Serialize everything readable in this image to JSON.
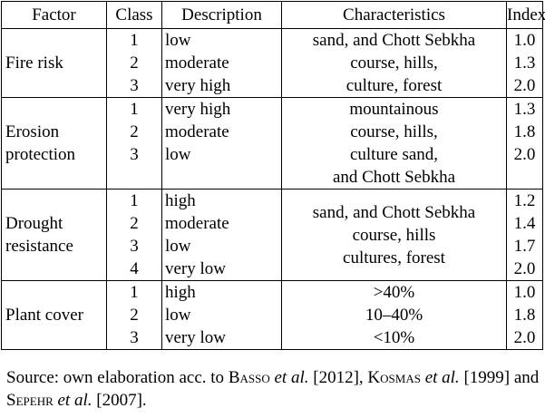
{
  "table": {
    "headers": [
      "Factor",
      "Class",
      "Description",
      "Characteristics",
      "Index"
    ],
    "groups": [
      {
        "factor": [
          "Fire risk"
        ],
        "classes": [
          "1",
          "2",
          "3"
        ],
        "descriptions": [
          "low",
          "moderate",
          "very high"
        ],
        "characteristics": [
          "sand, and Chott Sebkha",
          "course, hills,",
          "culture, forest"
        ],
        "indices": [
          "1.0",
          "1.3",
          "2.0"
        ]
      },
      {
        "factor": [
          "Erosion",
          "protection"
        ],
        "classes": [
          "1",
          "2",
          "3"
        ],
        "descriptions": [
          "very high",
          "moderate",
          "low"
        ],
        "characteristics": [
          "mountainous",
          "course, hills,",
          "culture sand,",
          "and Chott Sebkha"
        ],
        "indices": [
          "1.3",
          "1.8",
          "2.0"
        ]
      },
      {
        "factor": [
          "Drought",
          "resistance"
        ],
        "classes": [
          "1",
          "2",
          "3",
          "4"
        ],
        "descriptions": [
          "high",
          "moderate",
          "low",
          "very low"
        ],
        "characteristics": [
          "sand, and Chott Sebkha",
          "course, hills",
          "cultures, forest"
        ],
        "indices": [
          "1.2",
          "1.4",
          "1.7",
          "2.0"
        ]
      },
      {
        "factor": [
          "Plant cover"
        ],
        "classes": [
          "1",
          "2",
          "3"
        ],
        "descriptions": [
          "high",
          "low",
          "very low"
        ],
        "characteristics": [
          ">40%",
          "10–40%",
          "<10%"
        ],
        "indices": [
          "1.0",
          "1.8",
          "2.0"
        ]
      }
    ]
  },
  "source": {
    "prefix": "Source: own elaboration acc. to ",
    "a1_first": "B",
    "a1_rest": "asso",
    "etal1": "et al.",
    "y1": " [2012], ",
    "a2_first": "K",
    "a2_rest": "osmas",
    "etal2": "et al.",
    "y2": " [1999] and ",
    "a3_first": "S",
    "a3_rest": "epehr",
    "etal3": "et al.",
    "y3": " [2007]."
  }
}
